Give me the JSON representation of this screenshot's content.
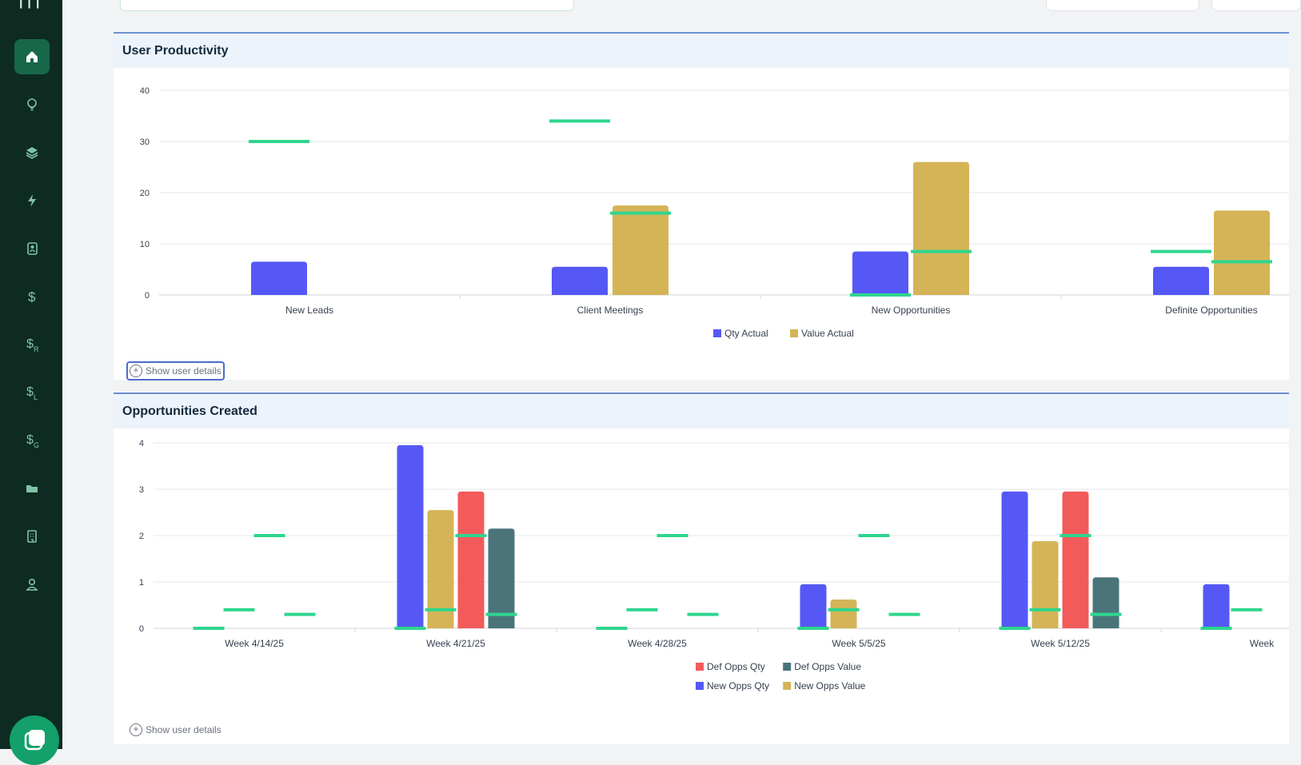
{
  "colors": {
    "sidebar_bg": "#0e2b22",
    "sidebar_active": "#17684a",
    "accent_green": "#2ed68e",
    "blue": "#5558f5",
    "gold": "#d4b456",
    "red": "#f35b5b",
    "teal": "#4a747a"
  },
  "sidebar": {
    "items": [
      {
        "icon": "home-icon",
        "active": true
      },
      {
        "icon": "lightbulb-icon"
      },
      {
        "icon": "layers-icon"
      },
      {
        "icon": "lightning-icon"
      },
      {
        "icon": "contact-book-icon"
      },
      {
        "icon": "dollar-icon"
      },
      {
        "icon": "dollar-r-icon",
        "suffix": "R"
      },
      {
        "icon": "dollar-l-icon",
        "suffix": "L"
      },
      {
        "icon": "dollar-g-icon",
        "suffix": "G"
      },
      {
        "icon": "folder-icon"
      },
      {
        "icon": "building-icon"
      },
      {
        "icon": "user-icon"
      }
    ]
  },
  "panels": {
    "productivity": {
      "title": "User Productivity",
      "show_details": "Show user details"
    },
    "opportunities": {
      "title": "Opportunities Created",
      "show_details": "Show user details"
    }
  },
  "chart_data": [
    {
      "type": "bar",
      "title": "User Productivity",
      "categories": [
        "New Leads",
        "Client Meetings",
        "New Opportunities",
        "Definite Opportunities"
      ],
      "ylim": [
        0,
        40
      ],
      "yticks": [
        0,
        10,
        20,
        30,
        40
      ],
      "grid": true,
      "legend_position": "bottom",
      "series": [
        {
          "name": "Qty Actual",
          "color": "#5558f5",
          "values": [
            6.5,
            5.5,
            8.5,
            5.5
          ]
        },
        {
          "name": "Value Actual",
          "color": "#d4b456",
          "values": [
            null,
            17.5,
            26,
            16.5
          ]
        }
      ],
      "targets": [
        {
          "series": "Qty Actual",
          "values": [
            30,
            34,
            0,
            8.5
          ]
        },
        {
          "series": "Value Actual",
          "values": [
            null,
            16,
            8.5,
            6.5
          ]
        }
      ]
    },
    {
      "type": "bar",
      "title": "Opportunities Created",
      "categories": [
        "Week 4/14/25",
        "Week 4/21/25",
        "Week 4/28/25",
        "Week 5/5/25",
        "Week 5/12/25",
        "Week"
      ],
      "ylim": [
        0,
        4
      ],
      "yticks": [
        0,
        1,
        2,
        3,
        4
      ],
      "grid": true,
      "legend_position": "bottom",
      "series": [
        {
          "name": "New Opps Qty",
          "color": "#5558f5",
          "values": [
            0,
            3.95,
            0,
            0.95,
            2.95,
            0.95
          ]
        },
        {
          "name": "New Opps Value",
          "color": "#d4b456",
          "values": [
            0,
            2.55,
            0,
            0.62,
            1.88,
            0
          ]
        },
        {
          "name": "Def Opps Qty",
          "color": "#f35b5b",
          "values": [
            0,
            2.95,
            0,
            0,
            2.95,
            0
          ]
        },
        {
          "name": "Def Opps Value",
          "color": "#4a747a",
          "values": [
            0,
            2.15,
            0,
            0,
            1.1,
            0
          ]
        }
      ],
      "targets": [
        {
          "series": "New Opps Qty",
          "values": [
            0,
            0,
            0,
            0,
            0,
            0
          ]
        },
        {
          "series": "New Opps Value",
          "values": [
            0.4,
            0.4,
            0.4,
            0.4,
            0.4,
            0.4
          ]
        },
        {
          "series": "Def Opps Qty",
          "values": [
            2,
            2,
            2,
            2,
            2,
            null
          ]
        },
        {
          "series": "Def Opps Value",
          "values": [
            0.3,
            0.3,
            0.3,
            0.3,
            0.3,
            null
          ]
        }
      ],
      "legend_order": [
        "Def Opps Qty",
        "Def Opps Value",
        "New Opps Qty",
        "New Opps Value"
      ]
    }
  ]
}
